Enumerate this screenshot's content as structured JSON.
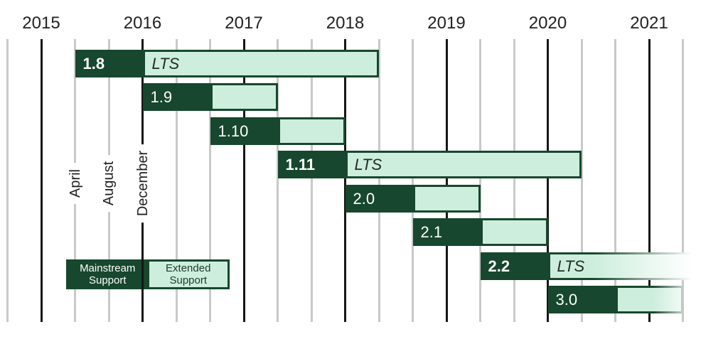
{
  "legend": {
    "mainstream_label": "Mainstream Support",
    "extended_label": "Extended Support"
  },
  "colors": {
    "mainstream_fill": "#17472e",
    "extended_fill": "#cdeedd",
    "major_gridline": "#161616",
    "minor_gridline": "#c9c9c9",
    "axis_text": "#212121",
    "lts_text": "#1f2a23",
    "legend_extended_text": "#1b3a28",
    "version_text": "#ffffff"
  },
  "chart_data": {
    "type": "gantt-timeline",
    "title": "",
    "x_axis_years": [
      "2015",
      "2016",
      "2017",
      "2018",
      "2019",
      "2020",
      "2021"
    ],
    "month_tick_labels": [
      {
        "label": "April",
        "month": "2015-04"
      },
      {
        "label": "August",
        "month": "2015-08"
      },
      {
        "label": "December",
        "month": "2015-12"
      }
    ],
    "gridline_interval_months": 4,
    "gridline_range": {
      "start": "2014-08",
      "end": "2021-04"
    },
    "year_line_month": "December (of preceding year)",
    "lts_label": "LTS",
    "series_legend": [
      "Mainstream Support",
      "Extended Support"
    ],
    "releases": [
      {
        "version": "1.8",
        "lts": true,
        "mainstream_start": "2015-04",
        "mainstream_end": "2015-12",
        "extended_end": "2018-04",
        "fades_out": false,
        "fade_right_edge": false
      },
      {
        "version": "1.9",
        "lts": false,
        "mainstream_start": "2015-12",
        "mainstream_end": "2016-08",
        "extended_end": "2017-04",
        "fades_out": false,
        "fade_right_edge": false
      },
      {
        "version": "1.10",
        "lts": false,
        "mainstream_start": "2016-08",
        "mainstream_end": "2017-04",
        "extended_end": "2017-12",
        "fades_out": false,
        "fade_right_edge": false
      },
      {
        "version": "1.11",
        "lts": true,
        "mainstream_start": "2017-04",
        "mainstream_end": "2017-12",
        "extended_end": "2020-04",
        "fades_out": false,
        "fade_right_edge": false
      },
      {
        "version": "2.0",
        "lts": false,
        "mainstream_start": "2017-12",
        "mainstream_end": "2018-08",
        "extended_end": "2019-04",
        "fades_out": false,
        "fade_right_edge": false
      },
      {
        "version": "2.1",
        "lts": false,
        "mainstream_start": "2018-08",
        "mainstream_end": "2019-04",
        "extended_end": "2019-12",
        "fades_out": false,
        "fade_right_edge": false
      },
      {
        "version": "2.2",
        "lts": true,
        "mainstream_start": "2019-04",
        "mainstream_end": "2019-12",
        "extended_end": "2021-07",
        "fades_out": true,
        "fade_right_edge": false
      },
      {
        "version": "3.0",
        "lts": false,
        "mainstream_start": "2019-12",
        "mainstream_end": "2020-08",
        "extended_end": "2021-04",
        "fades_out": false,
        "fade_right_edge": true
      }
    ]
  }
}
